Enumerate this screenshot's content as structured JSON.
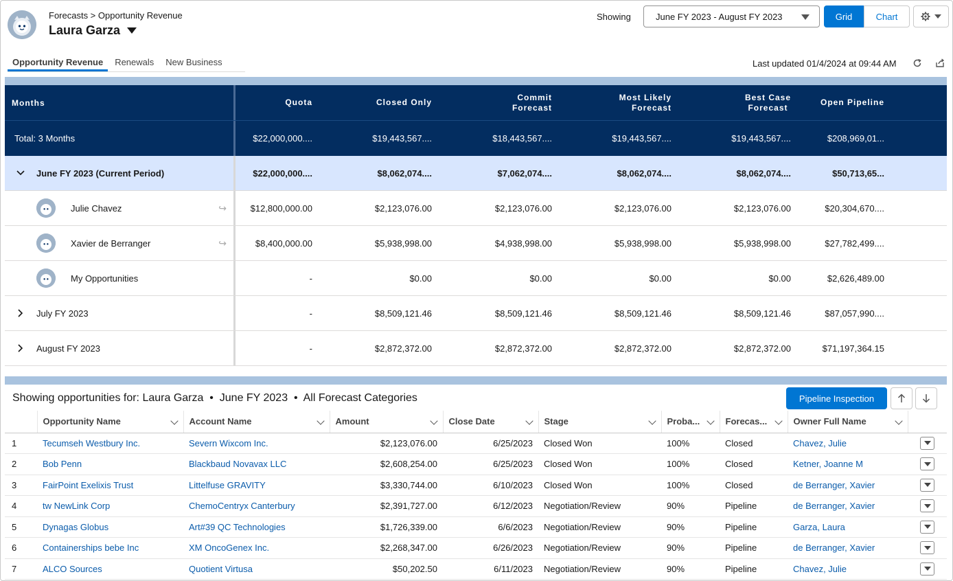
{
  "header": {
    "breadcrumb": "Forecasts > Opportunity Revenue",
    "owner_name": "Laura Garza",
    "showing_label": "Showing",
    "range_value": "June FY 2023 - August FY 2023",
    "grid_label": "Grid",
    "chart_label": "Chart"
  },
  "tabs": [
    {
      "label": "Opportunity Revenue",
      "active": true
    },
    {
      "label": "Renewals",
      "active": false
    },
    {
      "label": "New Business",
      "active": false
    }
  ],
  "last_updated": "Last updated 01/4/2024 at 09:44 AM",
  "forecast": {
    "columns": [
      "Months",
      "Quota",
      "Closed Only",
      "Commit\nForecast",
      "Most Likely\nForecast",
      "Best Case\nForecast",
      "Open Pipeline"
    ],
    "total": {
      "label": "Total: 3 Months",
      "values": [
        "$22,000,000....",
        "$19,443,567....",
        "$18,443,567....",
        "$19,443,567....",
        "$19,443,567....",
        "$208,969,01..."
      ]
    },
    "period": {
      "label": "June FY 2023 (Current Period)",
      "values": [
        "$22,000,000....",
        "$8,062,074....",
        "$7,062,074....",
        "$8,062,074....",
        "$8,062,074....",
        "$50,713,65..."
      ]
    },
    "subrows": [
      {
        "label": "Julie Chavez",
        "values": [
          "$12,800,000.00",
          "$2,123,076.00",
          "$2,123,076.00",
          "$2,123,076.00",
          "$2,123,076.00",
          "$20,304,670...."
        ]
      },
      {
        "label": "Xavier de Berranger",
        "values": [
          "$8,400,000.00",
          "$5,938,998.00",
          "$4,938,998.00",
          "$5,938,998.00",
          "$5,938,998.00",
          "$27,782,499...."
        ]
      },
      {
        "label": "My Opportunities",
        "values": [
          "-",
          "$0.00",
          "$0.00",
          "$0.00",
          "$0.00",
          "$2,626,489.00"
        ]
      }
    ],
    "months": [
      {
        "label": "July FY 2023",
        "values": [
          "-",
          "$8,509,121.46",
          "$8,509,121.46",
          "$8,509,121.46",
          "$8,509,121.46",
          "$87,057,990...."
        ]
      },
      {
        "label": "August FY 2023",
        "values": [
          "-",
          "$2,872,372.00",
          "$2,872,372.00",
          "$2,872,372.00",
          "$2,872,372.00",
          "$71,197,364.15"
        ]
      }
    ]
  },
  "opportunities": {
    "title": "Showing opportunities for: Laura Garza  •  June FY 2023  •  All Forecast Categories",
    "pipeline_button": "Pipeline Inspection",
    "columns": [
      "Opportunity Name",
      "Account Name",
      "Amount",
      "Close Date",
      "Stage",
      "Proba...",
      "Forecas...",
      "Owner Full Name"
    ],
    "rows": [
      {
        "n": "1",
        "opp": "Tecumseh Westbury Inc.",
        "acct": "Severn Wixcom Inc.",
        "amount": "$2,123,076.00",
        "close": "6/25/2023",
        "stage": "Closed Won",
        "prob": "100%",
        "cat": "Closed",
        "owner": "Chavez, Julie"
      },
      {
        "n": "2",
        "opp": "Bob Penn",
        "acct": "Blackbaud Novavax LLC",
        "amount": "$2,608,254.00",
        "close": "6/25/2023",
        "stage": "Closed Won",
        "prob": "100%",
        "cat": "Closed",
        "owner": "Ketner, Joanne M"
      },
      {
        "n": "3",
        "opp": "FairPoint Exelixis Trust",
        "acct": "Littelfuse GRAVITY",
        "amount": "$3,330,744.00",
        "close": "6/10/2023",
        "stage": "Closed Won",
        "prob": "100%",
        "cat": "Closed",
        "owner": "de Berranger, Xavier"
      },
      {
        "n": "4",
        "opp": "tw NewLink Corp",
        "acct": "ChemoCentryx Canterbury",
        "amount": "$2,391,727.00",
        "close": "6/12/2023",
        "stage": "Negotiation/Review",
        "prob": "90%",
        "cat": "Pipeline",
        "owner": "de Berranger, Xavier"
      },
      {
        "n": "5",
        "opp": "Dynagas Globus",
        "acct": "Art#39 QC Technologies",
        "amount": "$1,726,339.00",
        "close": "6/6/2023",
        "stage": "Negotiation/Review",
        "prob": "90%",
        "cat": "Pipeline",
        "owner": "Garza, Laura"
      },
      {
        "n": "6",
        "opp": "Containerships bebe Inc",
        "acct": "XM OncoGenex Inc.",
        "amount": "$2,268,347.00",
        "close": "6/26/2023",
        "stage": "Negotiation/Review",
        "prob": "90%",
        "cat": "Pipeline",
        "owner": "de Berranger, Xavier"
      },
      {
        "n": "7",
        "opp": "ALCO Sources",
        "acct": "Quotient Virtusa",
        "amount": "$50,202.50",
        "close": "6/11/2023",
        "stage": "Negotiation/Review",
        "prob": "90%",
        "cat": "Pipeline",
        "owner": "Chavez, Julie"
      }
    ]
  }
}
